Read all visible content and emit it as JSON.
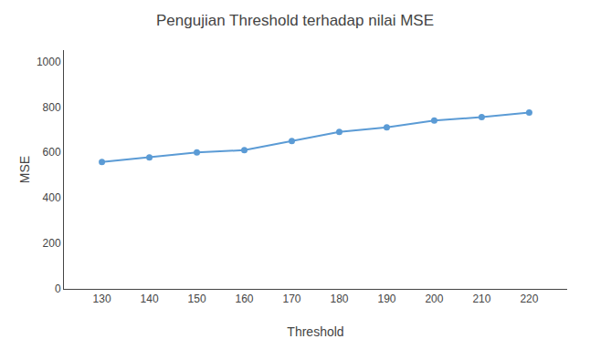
{
  "chart_data": {
    "type": "line",
    "title": "Pengujian Threshold terhadap nilai MSE",
    "xlabel": "Threshold",
    "ylabel": "MSE",
    "x": [
      130,
      140,
      150,
      160,
      170,
      180,
      190,
      200,
      210,
      220
    ],
    "values": [
      558,
      578,
      600,
      610,
      650,
      690,
      710,
      740,
      755,
      775
    ],
    "color": "#5B9BD5",
    "marker": "circle",
    "xlim": [
      122,
      228
    ],
    "ylim": [
      0,
      1050
    ],
    "xticks": [
      130,
      140,
      150,
      160,
      170,
      180,
      190,
      200,
      210,
      220
    ],
    "yticks": [
      0,
      200,
      400,
      600,
      800,
      1000
    ],
    "grid": false
  }
}
